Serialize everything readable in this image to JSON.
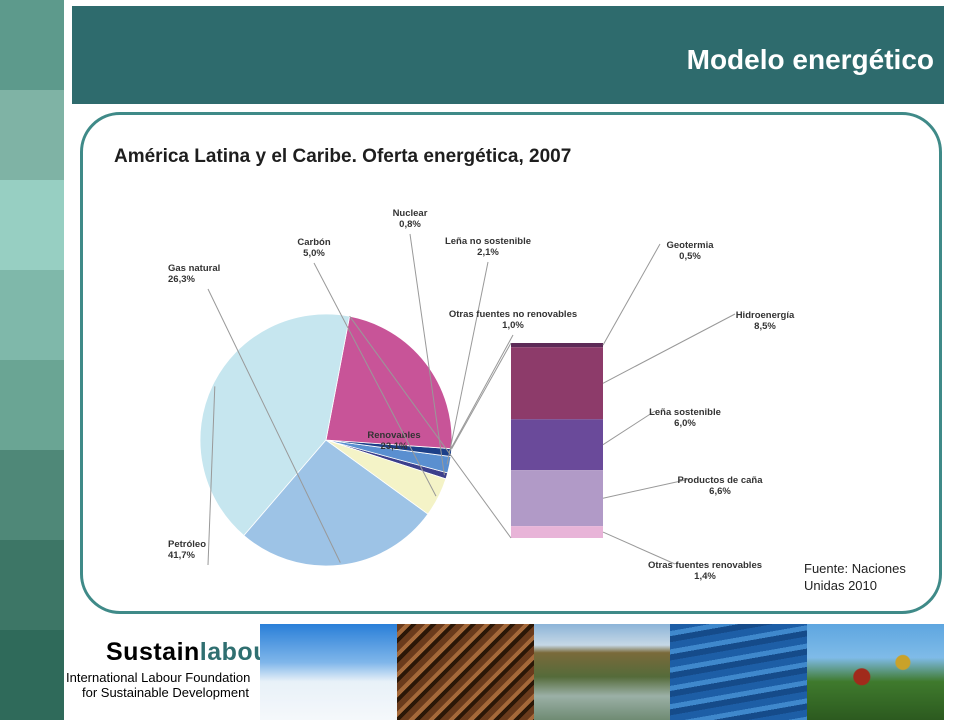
{
  "header": {
    "title": "Modelo energético"
  },
  "chart_data": {
    "type": "pie",
    "title": "América Latina y el Caribe. Oferta energética, 2007",
    "slices": [
      {
        "name": "Nuclear",
        "value": 0.8,
        "value_label": "0,8%",
        "color": "#3c3f8c"
      },
      {
        "name": "Leña no sostenible",
        "value": 2.1,
        "value_label": "2,1%",
        "color": "#5a8fd0"
      },
      {
        "name": "Otras fuentes no renovables",
        "value": 1.0,
        "value_label": "1,0%",
        "color": "#1c3f88"
      },
      {
        "name": "Renovables",
        "value": 23.1,
        "value_label": "23,1%",
        "color": "#c85498"
      },
      {
        "name": "Petróleo",
        "value": 41.7,
        "value_label": "41,7%",
        "color": "#c6e6ef"
      },
      {
        "name": "Gas natural",
        "value": 26.3,
        "value_label": "26,3%",
        "color": "#9dc3e6"
      },
      {
        "name": "Carbón",
        "value": 5.0,
        "value_label": "5,0%",
        "color": "#f4f3c7"
      }
    ],
    "breakdown": {
      "parent": "Renovables",
      "items": [
        {
          "name": "Geotermia",
          "value": 0.5,
          "value_label": "0,5%",
          "color": "#5d2a57"
        },
        {
          "name": "Hidroenergía",
          "value": 8.5,
          "value_label": "8,5%",
          "color": "#8d3b6a"
        },
        {
          "name": "Leña sostenible",
          "value": 6.0,
          "value_label": "6,0%",
          "color": "#6a4a9a"
        },
        {
          "name": "Productos de caña",
          "value": 6.6,
          "value_label": "6,6%",
          "color": "#b19ac7"
        },
        {
          "name": "Otras fuentes renovables",
          "value": 1.4,
          "value_label": "1,4%",
          "color": "#e8b4d8"
        }
      ]
    }
  },
  "source": "Fuente: Naciones Unidas 2010",
  "footer": {
    "logo_prefix": "Sustain",
    "logo_suffix": "labour",
    "logo_line1": "International Labour Foundation",
    "logo_line2": "for Sustainable Development"
  },
  "colors": {
    "header_bg": "#2e6b6d",
    "frame_border": "#3f8a88",
    "sidebar": [
      "#5d9a8c",
      "#7fb3a5",
      "#97cfc2",
      "#7fb8aa",
      "#6aa594",
      "#4f8878",
      "#3d7666",
      "#2f6a5a"
    ]
  },
  "icons": {
    "photos": [
      "snow-forest-photo",
      "firewood-photo",
      "wetland-photo",
      "water-photo",
      "coffee-plant-photo"
    ]
  }
}
